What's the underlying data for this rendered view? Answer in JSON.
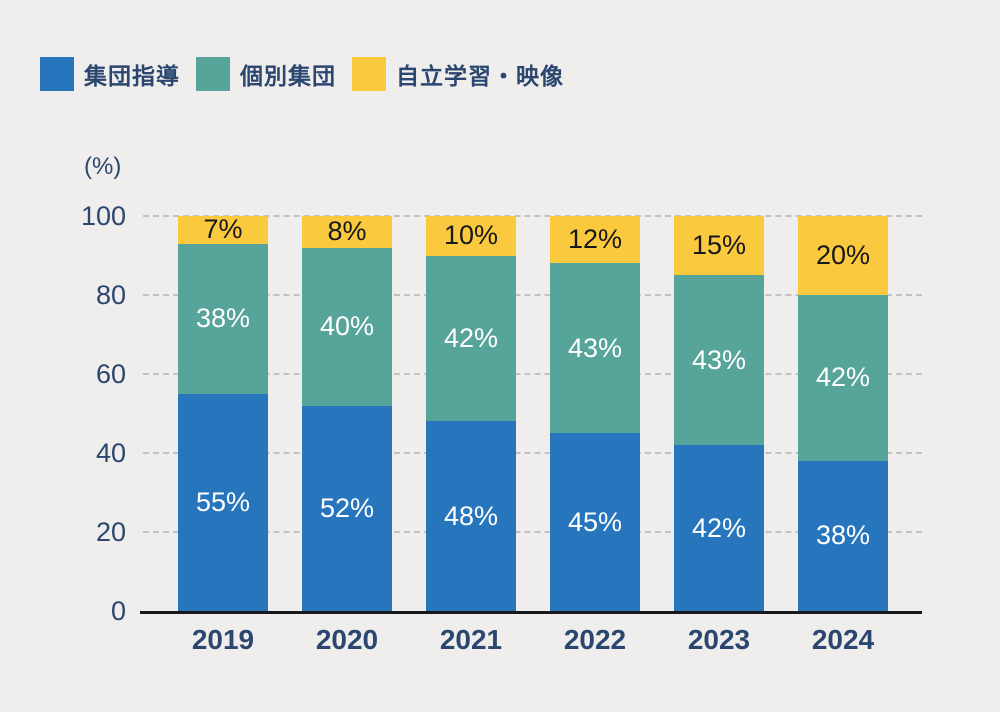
{
  "page": {
    "background": "#EFEEEC"
  },
  "legend": {
    "items": [
      {
        "label": "集団指導",
        "color": "#2776BD"
      },
      {
        "label": "個別集団",
        "color": "#57A49A"
      },
      {
        "label": "自立学習・映像",
        "color": "#FBC93D"
      }
    ]
  },
  "chart_data": {
    "type": "bar",
    "stacked": true,
    "unit_label": "(%)",
    "value_suffix": "%",
    "categories": [
      "2019",
      "2020",
      "2021",
      "2022",
      "2023",
      "2024"
    ],
    "series": [
      {
        "key": "group-instruction",
        "name": "集団指導",
        "color": "#2776BD",
        "label_color": "#FFFFFF",
        "values": [
          55,
          52,
          48,
          45,
          42,
          38
        ]
      },
      {
        "key": "individual-group",
        "name": "個別集団",
        "color": "#57A49A",
        "label_color": "#FFFFFF",
        "values": [
          38,
          40,
          42,
          43,
          43,
          42
        ]
      },
      {
        "key": "self-study-video",
        "name": "自立学習・映像",
        "color": "#FBC93D",
        "label_color": "#17181C",
        "values": [
          7,
          8,
          10,
          12,
          15,
          20
        ]
      }
    ],
    "y_ticks": [
      100,
      80,
      60,
      40,
      20,
      0
    ],
    "ylim": [
      0,
      100
    ],
    "grid": true,
    "legend_position": "top-left"
  },
  "theme": {
    "background": "#EFEEEC",
    "text_color": "#2B4770",
    "grid_color": "#C3C2C0",
    "axis_color": "#17181C"
  }
}
